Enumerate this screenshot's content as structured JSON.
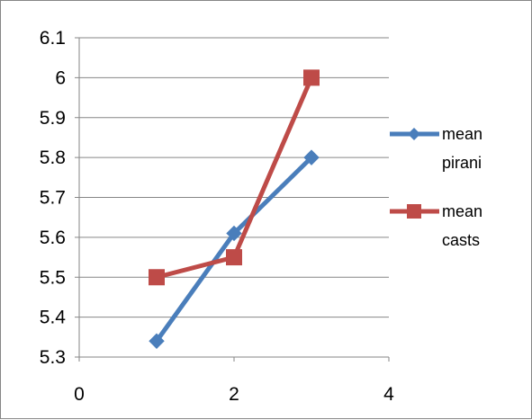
{
  "chart_data": {
    "type": "line",
    "title": "",
    "xlabel": "",
    "ylabel": "",
    "xlim": [
      0,
      4
    ],
    "ylim": [
      5.3,
      6.1
    ],
    "x_ticks": [
      "0",
      "2",
      "4"
    ],
    "y_ticks": [
      "5.3",
      "5.4",
      "5.5",
      "5.6",
      "5.7",
      "5.8",
      "5.9",
      "6",
      "6.1"
    ],
    "grid": "horizontal",
    "legend_position": "right",
    "series": [
      {
        "name_lines": [
          "mean",
          "pirani"
        ],
        "marker": "diamond",
        "color": "#4a7ebb",
        "x": [
          1,
          2,
          3
        ],
        "y": [
          5.34,
          5.61,
          5.8
        ]
      },
      {
        "name_lines": [
          "mean",
          "casts"
        ],
        "marker": "square",
        "color": "#be4b48",
        "x": [
          1,
          2,
          3
        ],
        "y": [
          5.5,
          5.55,
          6.0
        ]
      }
    ]
  }
}
